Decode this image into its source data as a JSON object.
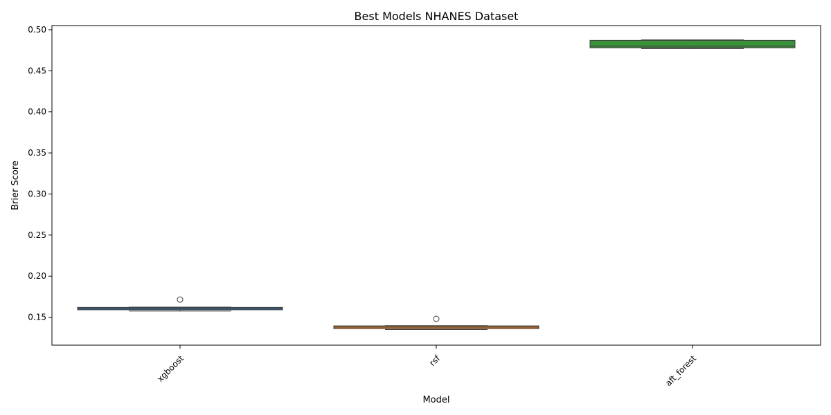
{
  "chart_data": {
    "type": "box",
    "title": "Best Models NHANES Dataset",
    "xlabel": "Model",
    "ylabel": "Brier Score",
    "ylim": [
      0.116,
      0.505
    ],
    "yticks": [
      0.15,
      0.2,
      0.25,
      0.3,
      0.35,
      0.4,
      0.45,
      0.5
    ],
    "ytick_labels": [
      "0.15",
      "0.20",
      "0.25",
      "0.30",
      "0.35",
      "0.40",
      "0.45",
      "0.50"
    ],
    "categories": [
      "xgboost",
      "rsf",
      "aft_forest"
    ],
    "boxes": [
      {
        "category": "xgboost",
        "whislo": 0.1575,
        "q1": 0.159,
        "median": 0.1605,
        "q3": 0.162,
        "whishi": 0.1622,
        "outliers": [
          0.1715
        ],
        "color": "#3e6fa8"
      },
      {
        "category": "rsf",
        "whislo": 0.135,
        "q1": 0.136,
        "median": 0.138,
        "q3": 0.1395,
        "whishi": 0.1397,
        "outliers": [
          0.148
        ],
        "color": "#e1812c"
      },
      {
        "category": "aft_forest",
        "whislo": 0.477,
        "q1": 0.478,
        "median": 0.48,
        "q3": 0.487,
        "whishi": 0.4875,
        "outliers": [],
        "color": "#3a923a"
      }
    ],
    "grid": false,
    "legend": "none"
  }
}
